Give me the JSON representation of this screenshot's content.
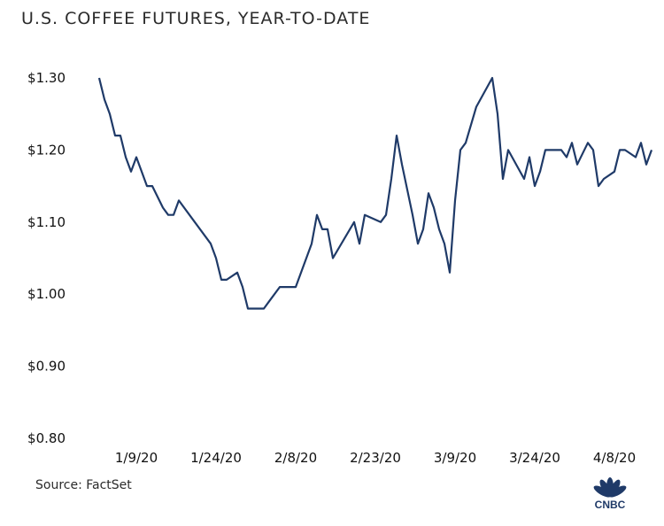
{
  "chart_data": {
    "type": "line",
    "title": "U.S. COFFEE FUTURES, YEAR-TO-DATE",
    "xlabel": "",
    "ylabel": "",
    "ylim": [
      0.8,
      1.3
    ],
    "yticks": [
      0.8,
      0.9,
      1.0,
      1.1,
      1.2,
      1.3
    ],
    "yticklabels": [
      "$0.80",
      "$0.90",
      "$1.00",
      "$1.10",
      "$1.20",
      "$1.30"
    ],
    "xticks": [
      "2020-01-09",
      "2020-01-24",
      "2020-02-08",
      "2020-02-23",
      "2020-03-09",
      "2020-03-24",
      "2020-04-08"
    ],
    "xticklabels": [
      "1/9/20",
      "1/24/20",
      "2/8/20",
      "2/23/20",
      "3/9/20",
      "3/24/20",
      "4/8/20"
    ],
    "xlim": [
      "2020-01-02",
      "2020-04-16"
    ],
    "grid": false,
    "line_color": "#1f3a68",
    "series": [
      {
        "x": [
          "2020-01-02",
          "2020-01-03",
          "2020-01-04",
          "2020-01-05",
          "2020-01-06",
          "2020-01-07",
          "2020-01-08",
          "2020-01-09",
          "2020-01-10",
          "2020-01-11",
          "2020-01-12",
          "2020-01-14",
          "2020-01-15",
          "2020-01-16",
          "2020-01-17",
          "2020-01-20",
          "2020-01-23",
          "2020-01-24",
          "2020-01-25",
          "2020-01-26",
          "2020-01-28",
          "2020-01-29",
          "2020-01-30",
          "2020-01-31",
          "2020-02-01",
          "2020-02-02",
          "2020-02-03",
          "2020-02-05",
          "2020-02-08",
          "2020-02-11",
          "2020-02-12",
          "2020-02-13",
          "2020-02-14",
          "2020-02-15",
          "2020-02-19",
          "2020-02-20",
          "2020-02-21",
          "2020-02-24",
          "2020-02-25",
          "2020-02-26",
          "2020-02-27",
          "2020-02-28",
          "2020-03-01",
          "2020-03-02",
          "2020-03-03",
          "2020-03-04",
          "2020-03-05",
          "2020-03-06",
          "2020-03-07",
          "2020-03-08",
          "2020-03-09",
          "2020-03-10",
          "2020-03-11",
          "2020-03-13",
          "2020-03-16",
          "2020-03-17",
          "2020-03-18",
          "2020-03-19",
          "2020-03-22",
          "2020-03-23",
          "2020-03-24",
          "2020-03-25",
          "2020-03-26",
          "2020-03-29",
          "2020-03-30",
          "2020-03-31",
          "2020-04-01",
          "2020-04-03",
          "2020-04-04",
          "2020-04-05",
          "2020-04-06",
          "2020-04-08",
          "2020-04-09",
          "2020-04-10",
          "2020-04-12",
          "2020-04-13",
          "2020-04-14",
          "2020-04-15"
        ],
        "y": [
          1.3,
          1.27,
          1.25,
          1.22,
          1.22,
          1.19,
          1.17,
          1.19,
          1.17,
          1.15,
          1.15,
          1.12,
          1.11,
          1.11,
          1.13,
          1.1,
          1.07,
          1.05,
          1.02,
          1.02,
          1.03,
          1.01,
          0.98,
          0.98,
          0.98,
          0.98,
          0.99,
          1.01,
          1.01,
          1.07,
          1.11,
          1.09,
          1.09,
          1.05,
          1.1,
          1.07,
          1.11,
          1.1,
          1.11,
          1.16,
          1.22,
          1.18,
          1.11,
          1.07,
          1.09,
          1.14,
          1.12,
          1.09,
          1.07,
          1.03,
          1.13,
          1.2,
          1.21,
          1.26,
          1.3,
          1.25,
          1.16,
          1.2,
          1.16,
          1.19,
          1.15,
          1.17,
          1.2,
          1.2,
          1.19,
          1.21,
          1.18,
          1.21,
          1.2,
          1.15,
          1.16,
          1.17,
          1.2,
          1.2,
          1.19,
          1.21,
          1.18,
          1.2
        ]
      }
    ]
  },
  "source": "Source: FactSet",
  "logo": {
    "name": "CNBC",
    "icon": "peacock-icon",
    "colors": [
      "#1f3a68"
    ]
  }
}
